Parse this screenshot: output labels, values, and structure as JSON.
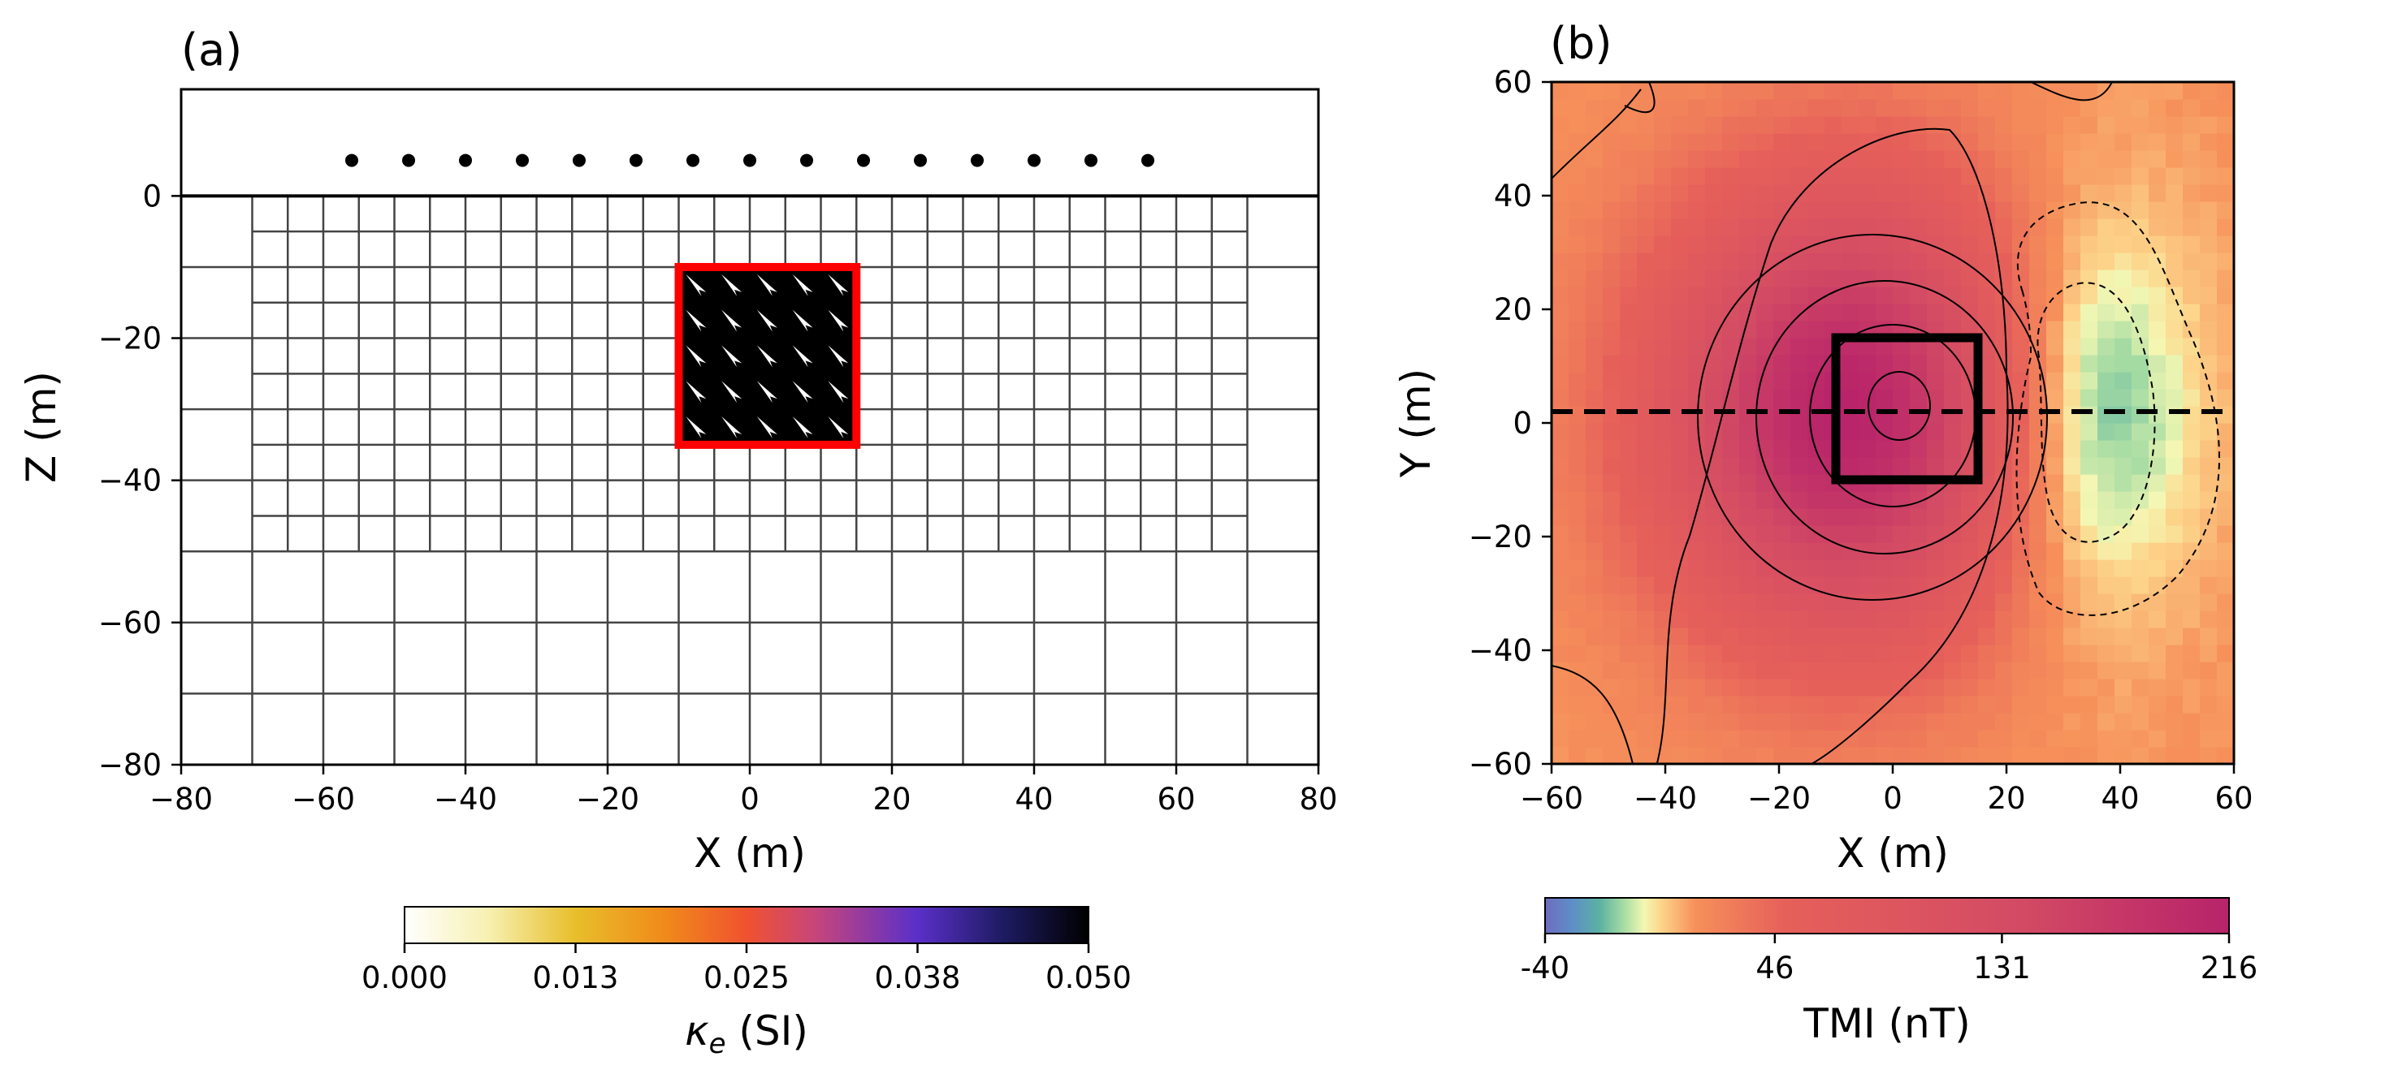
{
  "chart_data": [
    {
      "panel_label": "(a)",
      "type": "mesh-model",
      "xlabel": "X (m)",
      "ylabel": "Z (m)",
      "xlim": [
        -80,
        80
      ],
      "ylim": [
        -80,
        15
      ],
      "x_ticks": [
        "−80",
        "−60",
        "−40",
        "−20",
        "0",
        "20",
        "40",
        "60",
        "80"
      ],
      "x_tick_values": [
        -80,
        -60,
        -40,
        -20,
        0,
        20,
        40,
        60,
        80
      ],
      "y_ticks": [
        "0",
        "−20",
        "−40",
        "−60",
        "−80"
      ],
      "y_tick_values": [
        0,
        -20,
        -40,
        -60,
        -80
      ],
      "surface_z": 0,
      "receivers": {
        "z": 5,
        "x": [
          -56,
          -48,
          -40,
          -32,
          -24,
          -16,
          -8,
          0,
          8,
          16,
          24,
          32,
          40,
          48,
          56
        ]
      },
      "mesh": {
        "fine_x": [
          -70,
          -65,
          -60,
          -55,
          -50,
          -45,
          -40,
          -35,
          -30,
          -25,
          -20,
          -15,
          -10,
          -5,
          0,
          5,
          10,
          15,
          20,
          25,
          30,
          35,
          40,
          45,
          50,
          55,
          60,
          65,
          70
        ],
        "fine_z": [
          0,
          -5,
          -10,
          -15,
          -20,
          -25,
          -30,
          -35,
          -40,
          -45,
          -50
        ],
        "coarse_x": [
          -80,
          -70,
          -60,
          -50,
          -40,
          -30,
          -20,
          -10,
          0,
          10,
          20,
          30,
          40,
          50,
          60,
          70,
          80
        ],
        "coarse_z": [
          -50,
          -60,
          -70,
          -80
        ],
        "outer_z": [
          0,
          -10,
          -20,
          -30,
          -40,
          -50
        ]
      },
      "block": {
        "x": [
          -10,
          15
        ],
        "z": [
          -35,
          -10
        ],
        "kappa": 0.05,
        "arrow_count": "5x5"
      },
      "colorbar": {
        "label_sym": "κ",
        "label_sub": "e",
        "label_unit": " (SI)",
        "min": 0.0,
        "max": 0.05,
        "ticks": [
          "0.000",
          "0.013",
          "0.025",
          "0.038",
          "0.050"
        ],
        "tick_values": [
          0.0,
          0.0125,
          0.025,
          0.0375,
          0.05
        ],
        "cmap": "CMRmap_r"
      }
    },
    {
      "panel_label": "(b)",
      "type": "heatmap",
      "xlabel": "X (m)",
      "ylabel": "Y (m)",
      "xlim": [
        -60,
        60
      ],
      "ylim": [
        -60,
        60
      ],
      "x_ticks": [
        "−60",
        "−40",
        "−20",
        "0",
        "20",
        "40",
        "60"
      ],
      "x_tick_values": [
        -60,
        -40,
        -20,
        0,
        20,
        40,
        60
      ],
      "y_ticks": [
        "60",
        "40",
        "20",
        "0",
        "−20",
        "−40",
        "−60"
      ],
      "y_tick_values": [
        60,
        40,
        20,
        0,
        -20,
        -40,
        -60
      ],
      "grid_cells": 40,
      "anomaly": {
        "positive_peak_nT": 216,
        "positive_center": [
          -8,
          2
        ],
        "negative_min_nT": -40,
        "negative_center": [
          32,
          2
        ]
      },
      "contours_positive_nT": [
        10,
        60,
        110,
        160,
        200
      ],
      "contours_negative_nT": [
        -25,
        -35
      ],
      "profile_line_y": 2,
      "block_outline": {
        "x": [
          -10,
          15
        ],
        "y": [
          -10,
          15
        ]
      },
      "colorbar": {
        "label": "TMI (nT)",
        "min": -40,
        "max": 216,
        "ticks": [
          "-40",
          "46",
          "131",
          "216"
        ],
        "tick_values": [
          -40,
          46,
          131,
          216
        ],
        "cmap": "Spectral_r (stretched)"
      }
    }
  ]
}
